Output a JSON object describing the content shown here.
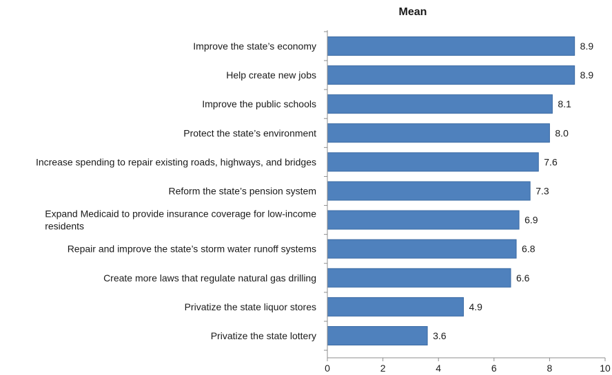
{
  "chart_data": {
    "type": "bar",
    "orientation": "horizontal",
    "title": "Mean",
    "xlabel": "",
    "ylabel": "",
    "xlim": [
      0,
      10
    ],
    "x_ticks": [
      0,
      2,
      4,
      6,
      8,
      10
    ],
    "grid": false,
    "bar_color": "#4f81bd",
    "bar_edge_color": "#3a6aa3",
    "categories": [
      [
        "Improve the state’s economy"
      ],
      [
        "Help create new jobs"
      ],
      [
        "Improve the public schools"
      ],
      [
        "Protect the state’s environment"
      ],
      [
        "Increase spending to repair existing roads, highways, and bridges"
      ],
      [
        "Reform the state’s pension system"
      ],
      [
        "Expand Medicaid to provide insurance coverage for low-income",
        "residents"
      ],
      [
        "Repair and improve the state’s storm water runoff systems"
      ],
      [
        "Create more laws that regulate natural gas drilling"
      ],
      [
        "Privatize the state liquor stores"
      ],
      [
        "Privatize the state lottery"
      ]
    ],
    "values": [
      8.9,
      8.9,
      8.1,
      8.0,
      7.6,
      7.3,
      6.9,
      6.8,
      6.6,
      4.9,
      3.6
    ],
    "value_labels": [
      "8.9",
      "8.9",
      "8.1",
      "8.0",
      "7.6",
      "7.3",
      "6.9",
      "6.8",
      "6.6",
      "4.9",
      "3.6"
    ]
  }
}
